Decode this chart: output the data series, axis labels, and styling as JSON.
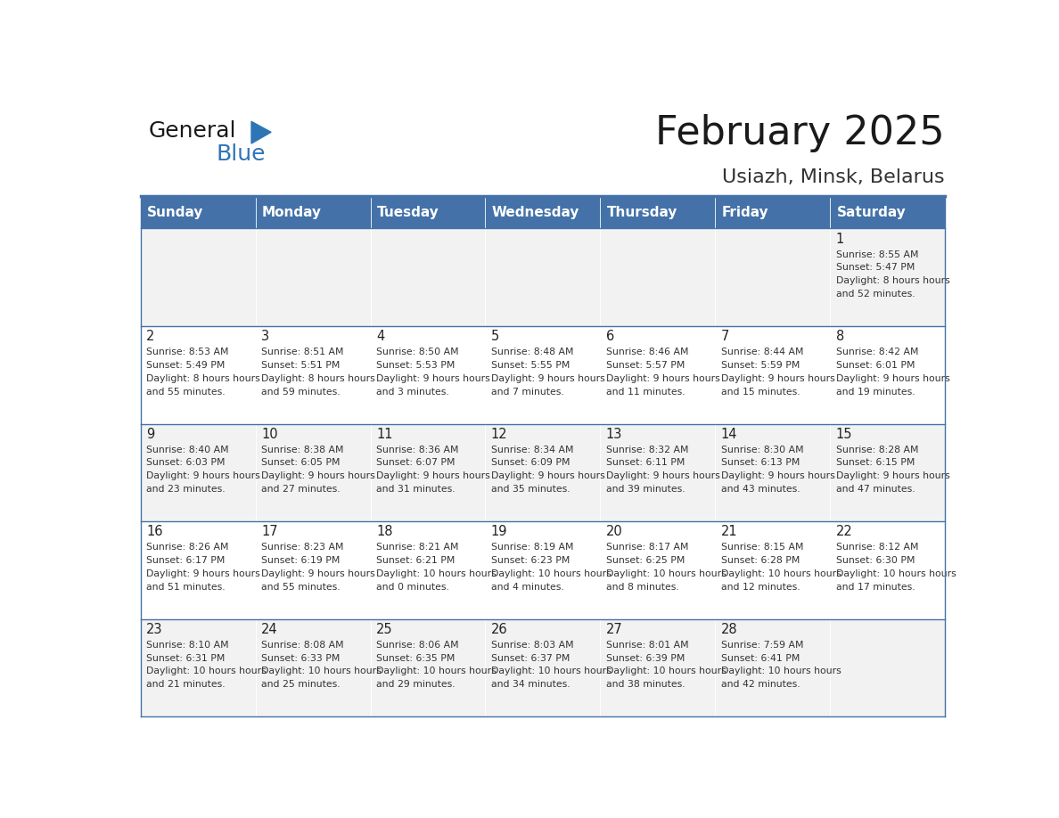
{
  "title": "February 2025",
  "subtitle": "Usiazh, Minsk, Belarus",
  "header_bg": "#4472a8",
  "header_text": "#ffffff",
  "row_bg_even": "#f2f2f2",
  "row_bg_odd": "#ffffff",
  "cell_border": "#4472a8",
  "day_names": [
    "Sunday",
    "Monday",
    "Tuesday",
    "Wednesday",
    "Thursday",
    "Friday",
    "Saturday"
  ],
  "days": [
    {
      "day": 1,
      "col": 6,
      "row": 0,
      "sunrise": "8:55 AM",
      "sunset": "5:47 PM",
      "daylight": "8 hours and 52 minutes."
    },
    {
      "day": 2,
      "col": 0,
      "row": 1,
      "sunrise": "8:53 AM",
      "sunset": "5:49 PM",
      "daylight": "8 hours and 55 minutes."
    },
    {
      "day": 3,
      "col": 1,
      "row": 1,
      "sunrise": "8:51 AM",
      "sunset": "5:51 PM",
      "daylight": "8 hours and 59 minutes."
    },
    {
      "day": 4,
      "col": 2,
      "row": 1,
      "sunrise": "8:50 AM",
      "sunset": "5:53 PM",
      "daylight": "9 hours and 3 minutes."
    },
    {
      "day": 5,
      "col": 3,
      "row": 1,
      "sunrise": "8:48 AM",
      "sunset": "5:55 PM",
      "daylight": "9 hours and 7 minutes."
    },
    {
      "day": 6,
      "col": 4,
      "row": 1,
      "sunrise": "8:46 AM",
      "sunset": "5:57 PM",
      "daylight": "9 hours and 11 minutes."
    },
    {
      "day": 7,
      "col": 5,
      "row": 1,
      "sunrise": "8:44 AM",
      "sunset": "5:59 PM",
      "daylight": "9 hours and 15 minutes."
    },
    {
      "day": 8,
      "col": 6,
      "row": 1,
      "sunrise": "8:42 AM",
      "sunset": "6:01 PM",
      "daylight": "9 hours and 19 minutes."
    },
    {
      "day": 9,
      "col": 0,
      "row": 2,
      "sunrise": "8:40 AM",
      "sunset": "6:03 PM",
      "daylight": "9 hours and 23 minutes."
    },
    {
      "day": 10,
      "col": 1,
      "row": 2,
      "sunrise": "8:38 AM",
      "sunset": "6:05 PM",
      "daylight": "9 hours and 27 minutes."
    },
    {
      "day": 11,
      "col": 2,
      "row": 2,
      "sunrise": "8:36 AM",
      "sunset": "6:07 PM",
      "daylight": "9 hours and 31 minutes."
    },
    {
      "day": 12,
      "col": 3,
      "row": 2,
      "sunrise": "8:34 AM",
      "sunset": "6:09 PM",
      "daylight": "9 hours and 35 minutes."
    },
    {
      "day": 13,
      "col": 4,
      "row": 2,
      "sunrise": "8:32 AM",
      "sunset": "6:11 PM",
      "daylight": "9 hours and 39 minutes."
    },
    {
      "day": 14,
      "col": 5,
      "row": 2,
      "sunrise": "8:30 AM",
      "sunset": "6:13 PM",
      "daylight": "9 hours and 43 minutes."
    },
    {
      "day": 15,
      "col": 6,
      "row": 2,
      "sunrise": "8:28 AM",
      "sunset": "6:15 PM",
      "daylight": "9 hours and 47 minutes."
    },
    {
      "day": 16,
      "col": 0,
      "row": 3,
      "sunrise": "8:26 AM",
      "sunset": "6:17 PM",
      "daylight": "9 hours and 51 minutes."
    },
    {
      "day": 17,
      "col": 1,
      "row": 3,
      "sunrise": "8:23 AM",
      "sunset": "6:19 PM",
      "daylight": "9 hours and 55 minutes."
    },
    {
      "day": 18,
      "col": 2,
      "row": 3,
      "sunrise": "8:21 AM",
      "sunset": "6:21 PM",
      "daylight": "10 hours and 0 minutes."
    },
    {
      "day": 19,
      "col": 3,
      "row": 3,
      "sunrise": "8:19 AM",
      "sunset": "6:23 PM",
      "daylight": "10 hours and 4 minutes."
    },
    {
      "day": 20,
      "col": 4,
      "row": 3,
      "sunrise": "8:17 AM",
      "sunset": "6:25 PM",
      "daylight": "10 hours and 8 minutes."
    },
    {
      "day": 21,
      "col": 5,
      "row": 3,
      "sunrise": "8:15 AM",
      "sunset": "6:28 PM",
      "daylight": "10 hours and 12 minutes."
    },
    {
      "day": 22,
      "col": 6,
      "row": 3,
      "sunrise": "8:12 AM",
      "sunset": "6:30 PM",
      "daylight": "10 hours and 17 minutes."
    },
    {
      "day": 23,
      "col": 0,
      "row": 4,
      "sunrise": "8:10 AM",
      "sunset": "6:31 PM",
      "daylight": "10 hours and 21 minutes."
    },
    {
      "day": 24,
      "col": 1,
      "row": 4,
      "sunrise": "8:08 AM",
      "sunset": "6:33 PM",
      "daylight": "10 hours and 25 minutes."
    },
    {
      "day": 25,
      "col": 2,
      "row": 4,
      "sunrise": "8:06 AM",
      "sunset": "6:35 PM",
      "daylight": "10 hours and 29 minutes."
    },
    {
      "day": 26,
      "col": 3,
      "row": 4,
      "sunrise": "8:03 AM",
      "sunset": "6:37 PM",
      "daylight": "10 hours and 34 minutes."
    },
    {
      "day": 27,
      "col": 4,
      "row": 4,
      "sunrise": "8:01 AM",
      "sunset": "6:39 PM",
      "daylight": "10 hours and 38 minutes."
    },
    {
      "day": 28,
      "col": 5,
      "row": 4,
      "sunrise": "7:59 AM",
      "sunset": "6:41 PM",
      "daylight": "10 hours and 42 minutes."
    }
  ],
  "logo_general_color": "#1a1a1a",
  "logo_blue_color": "#2e75b6",
  "title_color": "#1a1a1a",
  "subtitle_color": "#333333",
  "text_color": "#333333",
  "day_num_color": "#222222"
}
